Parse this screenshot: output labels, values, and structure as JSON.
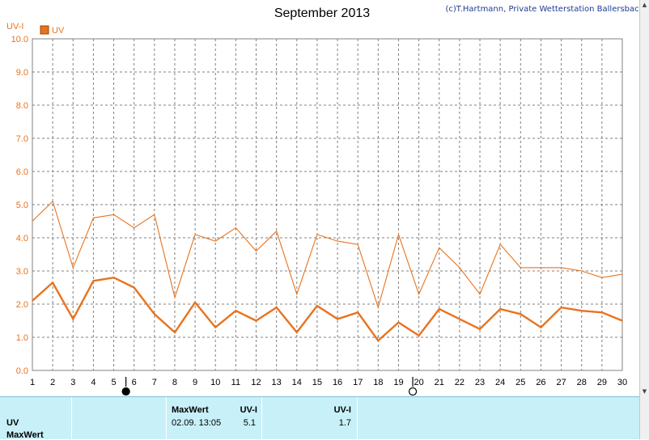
{
  "header": {
    "title": "September 2013",
    "credit": "(c)T.Hartmann, Private Wetterstation Ballersbach"
  },
  "legend": {
    "label": "UV"
  },
  "colors": {
    "series": "#e8731f",
    "grid": "#808080",
    "panel_bg": "#c8f0f8",
    "credit": "#1f3a93"
  },
  "chart_data": {
    "type": "line",
    "title": "September 2013",
    "ylabel": "UV-I",
    "xlabel": "",
    "ylim": [
      0.0,
      10.0
    ],
    "xlim": [
      1,
      30
    ],
    "y_ticks": [
      "0.0",
      "1.0",
      "2.0",
      "3.0",
      "4.0",
      "5.0",
      "6.0",
      "7.0",
      "8.0",
      "9.0",
      "10.0"
    ],
    "x": [
      1,
      2,
      3,
      4,
      5,
      6,
      7,
      8,
      9,
      10,
      11,
      12,
      13,
      14,
      15,
      16,
      17,
      18,
      19,
      20,
      21,
      22,
      23,
      24,
      25,
      26,
      27,
      28,
      29,
      30
    ],
    "grid": true,
    "legend_position": "top-left",
    "moon_phases": [
      {
        "day": 5.6,
        "phase": "new-moon"
      },
      {
        "day": 19.7,
        "phase": "full-moon"
      }
    ],
    "series": [
      {
        "name": "UV",
        "style": "max",
        "values": [
          4.5,
          5.1,
          3.1,
          4.6,
          4.7,
          4.3,
          4.7,
          2.2,
          4.1,
          3.9,
          4.3,
          3.6,
          4.2,
          2.3,
          4.1,
          3.9,
          3.8,
          1.9,
          4.1,
          2.3,
          3.7,
          3.1,
          2.3,
          3.8,
          3.1,
          3.1,
          3.1,
          3.0,
          2.8,
          2.9
        ]
      },
      {
        "name": "UV",
        "style": "mean",
        "values": [
          2.1,
          2.65,
          1.55,
          2.7,
          2.8,
          2.5,
          1.7,
          1.15,
          2.05,
          1.3,
          1.8,
          1.5,
          1.9,
          1.15,
          1.95,
          1.55,
          1.75,
          0.9,
          1.45,
          1.05,
          1.85,
          1.55,
          1.25,
          1.85,
          1.7,
          1.3,
          1.9,
          1.8,
          1.75,
          1.5
        ]
      }
    ]
  },
  "panel": {
    "row_label_1": "UV",
    "row_label_2": "MaxWert",
    "col1_header": "MaxWert",
    "col1_unit": "UV-I",
    "col1_datetime": "02.09.  13:05",
    "col1_value": "5.1",
    "col2_unit": "UV-I",
    "col2_value": "1.7"
  }
}
